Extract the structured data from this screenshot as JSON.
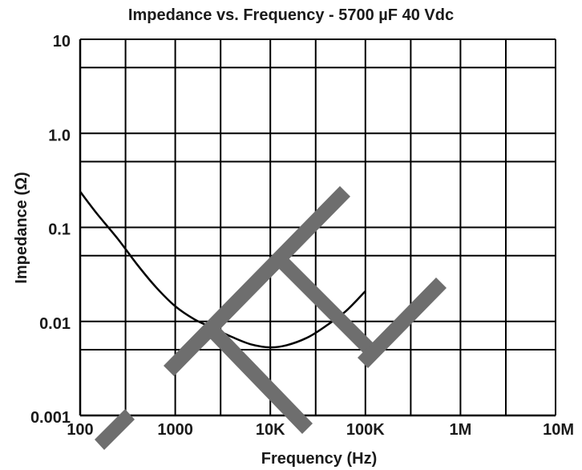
{
  "chart_data": {
    "type": "line",
    "title": "Impedance vs. Frequency - 5700 µF 40 Vdc",
    "xlabel": "Frequency (Hz)",
    "ylabel": "Impedance (Ω)",
    "x_scale": "log",
    "y_scale": "log",
    "xlim": [
      100,
      10000000
    ],
    "ylim": [
      0.001,
      10
    ],
    "grid": true,
    "x_ticks": [
      {
        "value": 100,
        "label": "100"
      },
      {
        "value": 1000,
        "label": "1000"
      },
      {
        "value": 10000,
        "label": "10K"
      },
      {
        "value": 100000,
        "label": "100K"
      },
      {
        "value": 1000000,
        "label": "1M"
      },
      {
        "value": 10000000,
        "label": "10M"
      }
    ],
    "y_ticks": [
      {
        "value": 10,
        "label": "10"
      },
      {
        "value": 1,
        "label": "1.0"
      },
      {
        "value": 0.1,
        "label": "0.1"
      },
      {
        "value": 0.01,
        "label": "0.01"
      },
      {
        "value": 0.001,
        "label": "0.001"
      }
    ],
    "series": [
      {
        "x": [
          100,
          150,
          250,
          400,
          630,
          1000,
          1600,
          2500,
          4000,
          6300,
          10000,
          15000,
          25000,
          40000,
          63000,
          100000
        ],
        "y": [
          0.24,
          0.14,
          0.075,
          0.04,
          0.023,
          0.0145,
          0.0105,
          0.0085,
          0.0068,
          0.0057,
          0.0053,
          0.0056,
          0.0068,
          0.0092,
          0.013,
          0.021
        ]
      }
    ]
  },
  "colors": {
    "line": "#000000",
    "grid": "#000000",
    "watermark": "#6e6e6e",
    "text": "#1a1a1a"
  }
}
